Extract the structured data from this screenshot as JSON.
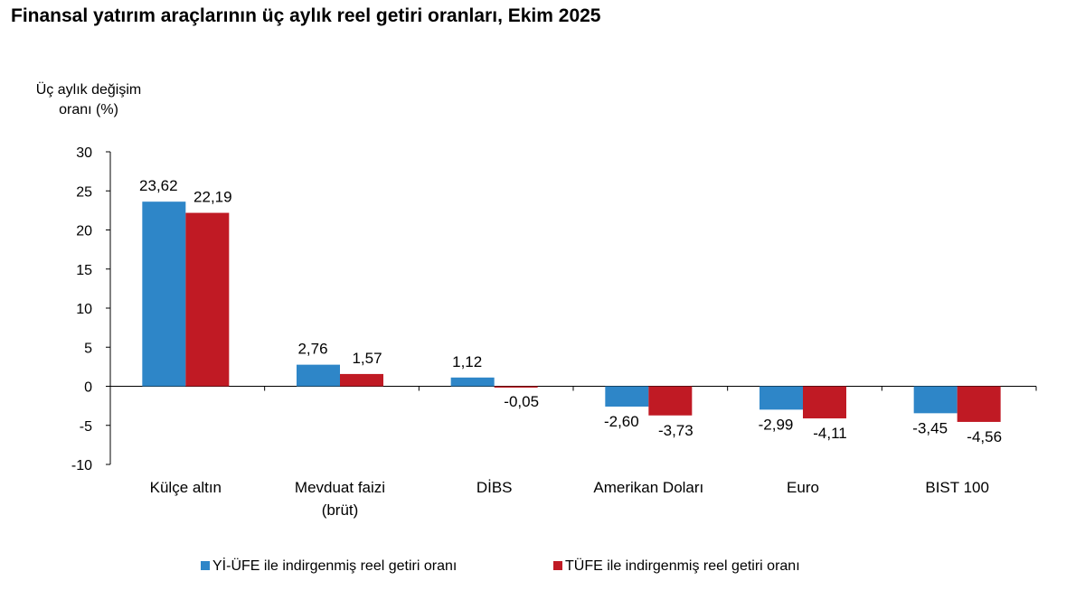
{
  "chart_data": {
    "type": "bar",
    "title": "Finansal yatırım araçlarının üç aylık reel getiri oranları, Ekim 2025",
    "ylabel": [
      "Üç aylık değişim",
      "oranı (%)"
    ],
    "xlabel": "",
    "ylim": [
      -10,
      30
    ],
    "yticks": [
      "30",
      "25",
      "20",
      "15",
      "10",
      "5",
      "0",
      "-5",
      "-10"
    ],
    "categories": [
      [
        "Külçe altın"
      ],
      [
        "Mevduat faizi",
        "(brüt)"
      ],
      [
        "DİBS"
      ],
      [
        "Amerikan Doları"
      ],
      [
        "Euro"
      ],
      [
        "BIST 100"
      ]
    ],
    "series": [
      {
        "name": "Yİ-ÜFE ile indirgenmiş reel getiri oranı",
        "color": "#2E86C8",
        "values": [
          23.62,
          2.76,
          1.12,
          -2.6,
          -2.99,
          -3.45
        ],
        "labels": [
          "23,62",
          "2,76",
          "1,12",
          "-2,60",
          "-2,99",
          "-3,45"
        ]
      },
      {
        "name": "TÜFE ile indirgenmiş reel getiri oranı",
        "color": "#C01A24",
        "values": [
          22.19,
          1.57,
          -0.05,
          -3.73,
          -4.11,
          -4.56
        ],
        "labels": [
          "22,19",
          "1,57",
          "-0,05",
          "-3,73",
          "-4,11",
          "-4,56"
        ]
      }
    ],
    "grid": false,
    "legend": "bottom"
  }
}
